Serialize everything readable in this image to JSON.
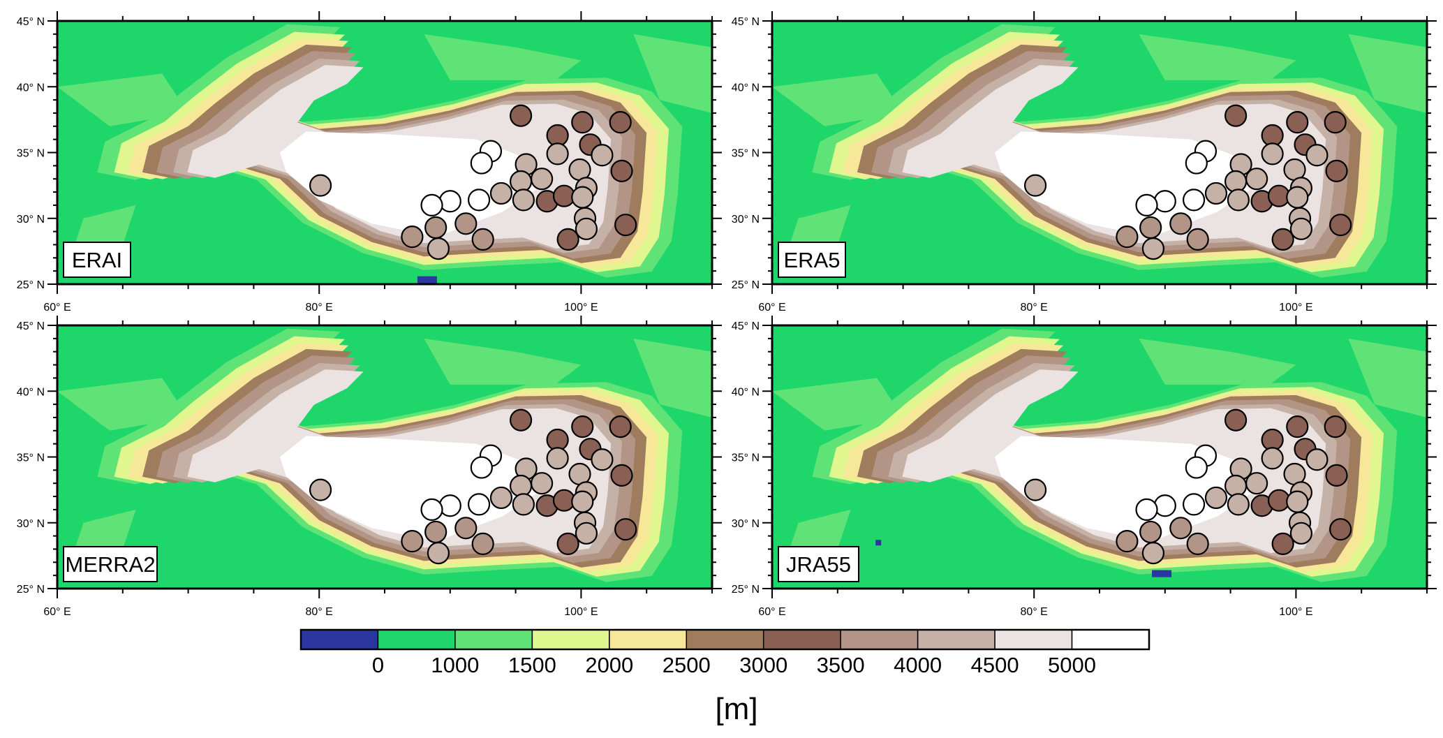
{
  "panels": [
    {
      "label": "ERAI"
    },
    {
      "label": "ERA5"
    },
    {
      "label": "MERRA2"
    },
    {
      "label": "JRA55"
    }
  ],
  "map": {
    "lon_range": [
      60,
      110
    ],
    "lat_range": [
      25,
      45
    ],
    "lon_ticks": [
      {
        "value": 60,
        "label": "60° E"
      },
      {
        "value": 80,
        "label": "80° E"
      },
      {
        "value": 100,
        "label": "100° E"
      }
    ],
    "lat_ticks": [
      {
        "value": 25,
        "label": "25° N"
      },
      {
        "value": 30,
        "label": "30° N"
      },
      {
        "value": 35,
        "label": "35° N"
      },
      {
        "value": 40,
        "label": "40° N"
      },
      {
        "value": 45,
        "label": "45° N"
      }
    ]
  },
  "colorbar": {
    "colors": [
      "#2b36a0",
      "#1fd66b",
      "#5fe276",
      "#e0f78f",
      "#f7e799",
      "#9e7c5d",
      "#8b6054",
      "#b39587",
      "#c6b1a7",
      "#ebe3e1",
      "#ffffff"
    ],
    "labels": [
      "0",
      "1000",
      "1500",
      "2000",
      "2500",
      "3000",
      "3500",
      "4000",
      "4500",
      "5000"
    ],
    "unit": "[m]"
  },
  "stations": [
    {
      "lon": 80.1,
      "lat": 32.5,
      "cls": 8
    },
    {
      "lon": 95.4,
      "lat": 37.8,
      "cls": 6
    },
    {
      "lon": 100.1,
      "lat": 37.3,
      "cls": 6
    },
    {
      "lon": 103.0,
      "lat": 37.3,
      "cls": 6
    },
    {
      "lon": 98.2,
      "lat": 36.3,
      "cls": 6
    },
    {
      "lon": 100.7,
      "lat": 35.6,
      "cls": 6
    },
    {
      "lon": 93.1,
      "lat": 35.1,
      "cls": 10
    },
    {
      "lon": 101.6,
      "lat": 34.8,
      "cls": 8
    },
    {
      "lon": 98.2,
      "lat": 34.9,
      "cls": 8
    },
    {
      "lon": 92.4,
      "lat": 34.2,
      "cls": 10
    },
    {
      "lon": 95.8,
      "lat": 34.1,
      "cls": 8
    },
    {
      "lon": 99.9,
      "lat": 33.7,
      "cls": 8
    },
    {
      "lon": 103.1,
      "lat": 33.6,
      "cls": 6
    },
    {
      "lon": 97.0,
      "lat": 33.0,
      "cls": 8
    },
    {
      "lon": 95.4,
      "lat": 32.8,
      "cls": 8
    },
    {
      "lon": 100.4,
      "lat": 32.3,
      "cls": 8
    },
    {
      "lon": 93.9,
      "lat": 31.9,
      "cls": 8
    },
    {
      "lon": 92.2,
      "lat": 31.4,
      "cls": 10
    },
    {
      "lon": 90.0,
      "lat": 31.3,
      "cls": 10
    },
    {
      "lon": 88.6,
      "lat": 31.0,
      "cls": 10
    },
    {
      "lon": 95.6,
      "lat": 31.4,
      "cls": 8
    },
    {
      "lon": 97.4,
      "lat": 31.3,
      "cls": 6
    },
    {
      "lon": 98.7,
      "lat": 31.7,
      "cls": 6
    },
    {
      "lon": 100.1,
      "lat": 31.6,
      "cls": 8
    },
    {
      "lon": 100.3,
      "lat": 30.0,
      "cls": 8
    },
    {
      "lon": 100.4,
      "lat": 29.2,
      "cls": 8
    },
    {
      "lon": 91.2,
      "lat": 29.6,
      "cls": 7
    },
    {
      "lon": 88.9,
      "lat": 29.3,
      "cls": 7
    },
    {
      "lon": 87.1,
      "lat": 28.6,
      "cls": 7
    },
    {
      "lon": 92.5,
      "lat": 28.4,
      "cls": 7
    },
    {
      "lon": 89.1,
      "lat": 27.7,
      "cls": 8
    },
    {
      "lon": 99.0,
      "lat": 28.4,
      "cls": 6
    },
    {
      "lon": 103.4,
      "lat": 29.5,
      "cls": 6
    }
  ]
}
